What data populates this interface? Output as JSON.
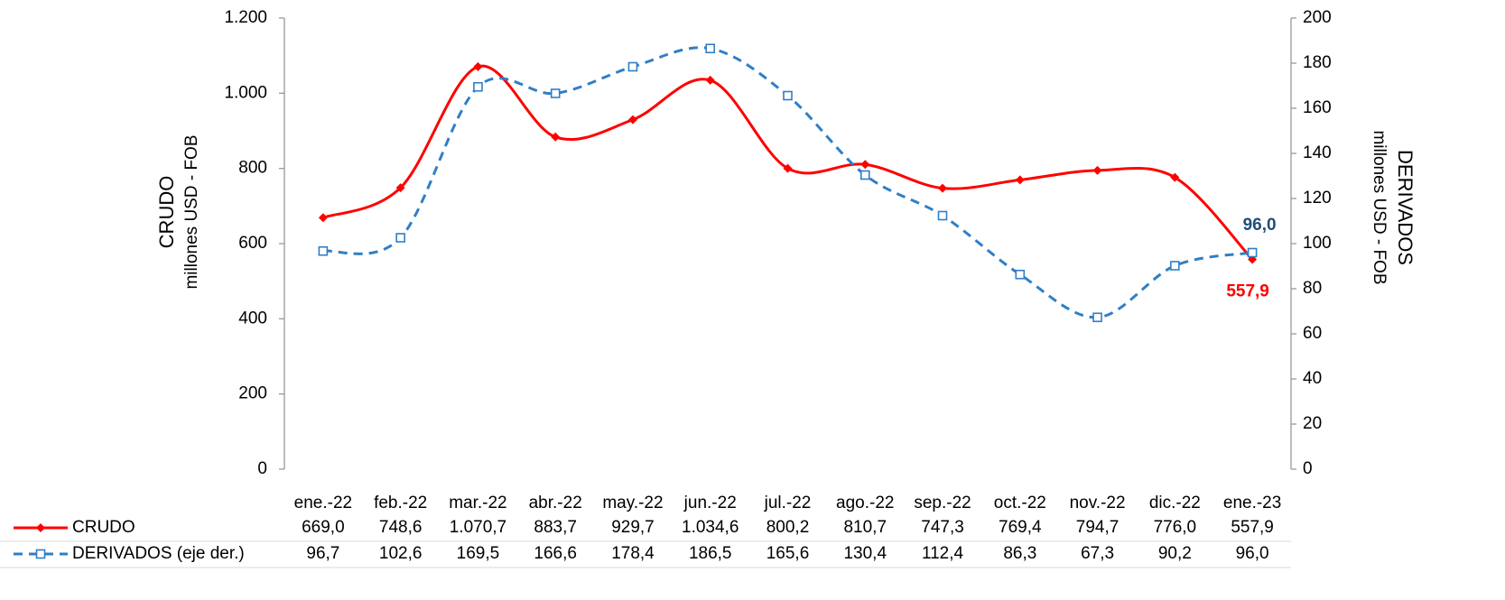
{
  "chart_data": {
    "type": "line",
    "categories": [
      "ene.-22",
      "feb.-22",
      "mar.-22",
      "abr.-22",
      "may.-22",
      "jun.-22",
      "jul.-22",
      "ago.-22",
      "sep.-22",
      "oct.-22",
      "nov.-22",
      "dic.-22",
      "ene.-23"
    ],
    "ylabel": [
      "CRUDO",
      "millones USD - FOB"
    ],
    "y2label": [
      "DERIVADOS",
      "millones USD - FOB"
    ],
    "ylim": [
      0,
      1200
    ],
    "yticks": [
      0,
      200,
      400,
      600,
      800,
      {
        "value": 1000,
        "label": "1.000"
      },
      {
        "value": 1200,
        "label": "1.200"
      }
    ],
    "y2lim": [
      0,
      200
    ],
    "y2ticks": [
      0,
      20,
      40,
      60,
      80,
      100,
      120,
      140,
      160,
      180,
      200
    ],
    "series": [
      {
        "name": "CRUDO",
        "color": "#ff0000",
        "axis": "y",
        "marker": "diamond",
        "dashed": false,
        "values": [
          669.0,
          748.6,
          1070.7,
          883.7,
          929.7,
          1034.6,
          800.2,
          810.7,
          747.3,
          769.4,
          794.7,
          776.0,
          557.9
        ],
        "value_labels": [
          "669,0",
          "748,6",
          "1.070,7",
          "883,7",
          "929,7",
          "1.034,6",
          "800,2",
          "810,7",
          "747,3",
          "769,4",
          "794,7",
          "776,0",
          "557,9"
        ]
      },
      {
        "name": "DERIVADOS (eje der.)",
        "color": "#2f7fc6",
        "axis": "y2",
        "marker": "square",
        "dashed": true,
        "values": [
          96.7,
          102.6,
          169.5,
          166.6,
          178.4,
          186.5,
          165.6,
          130.4,
          112.4,
          86.3,
          67.3,
          90.2,
          96.0
        ],
        "value_labels": [
          "96,7",
          "102,6",
          "169,5",
          "166,6",
          "178,4",
          "186,5",
          "165,6",
          "130,4",
          "112,4",
          "86,3",
          "67,3",
          "90,2",
          "96,0"
        ]
      }
    ]
  }
}
